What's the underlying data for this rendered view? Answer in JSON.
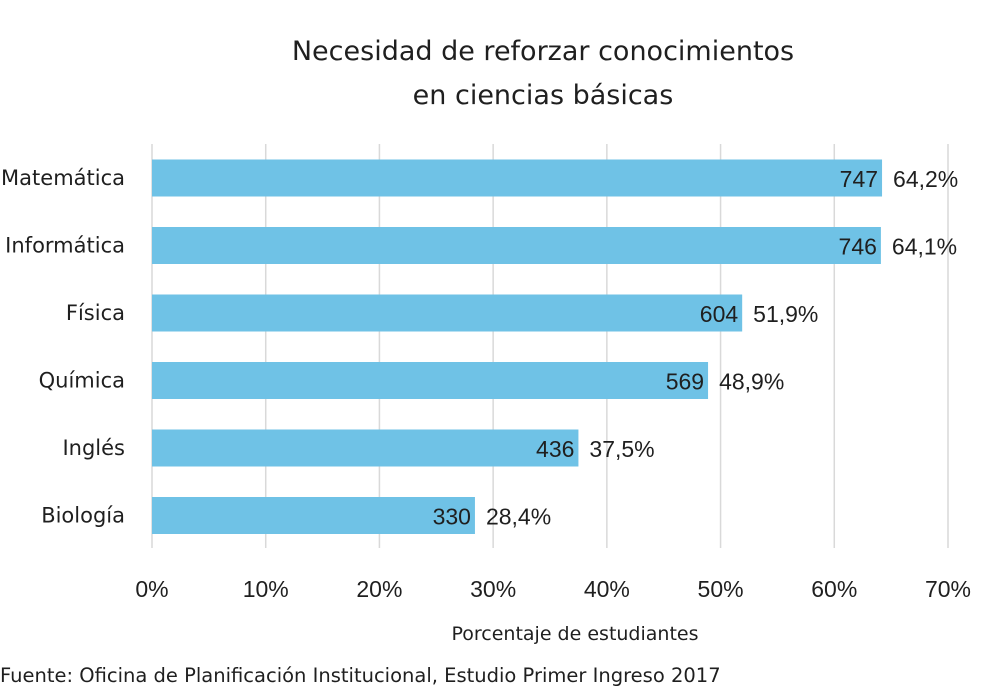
{
  "chart_data": {
    "type": "bar",
    "orientation": "horizontal",
    "title_lines": [
      "Necesidad de reforzar conocimientos",
      "en ciencias básicas"
    ],
    "categories": [
      "Matemática",
      "Informática",
      "Física",
      "Química",
      "Inglés",
      "Biología"
    ],
    "values": [
      64.2,
      64.1,
      51.9,
      48.9,
      37.5,
      28.4
    ],
    "counts": [
      747,
      746,
      604,
      569,
      436,
      330
    ],
    "percent_labels": [
      "64,2%",
      "64,1%",
      "51,9%",
      "48,9%",
      "37,5%",
      "28,4%"
    ],
    "xticks": [
      0,
      10,
      20,
      30,
      40,
      50,
      60,
      70
    ],
    "xtick_labels": [
      "0%",
      "10%",
      "20%",
      "30%",
      "40%",
      "50%",
      "60%",
      "70%"
    ],
    "xlim": [
      0,
      70
    ],
    "xlabel": "Porcentaje de estudiantes",
    "ylabel": "",
    "grid": true,
    "bar_color": "#6fc2e6",
    "grid_color": "#d9d9d9"
  },
  "source": "Fuente: Oficina de Planificación Institucional, Estudio Primer Ingreso 2017"
}
